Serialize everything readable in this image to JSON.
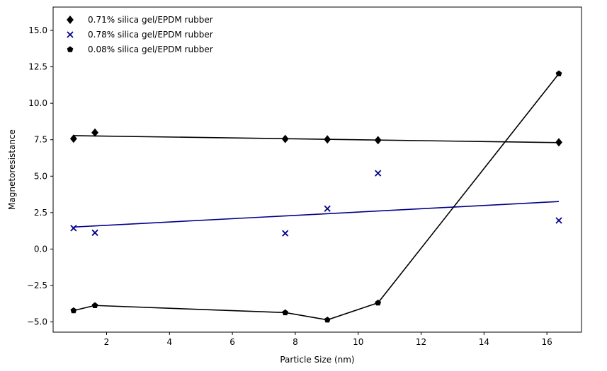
{
  "chart_data": {
    "type": "scatter",
    "title": "",
    "xlabel": "Particle Size (nm)",
    "ylabel": "Magnetoresistance",
    "xlim": [
      0.3,
      17.1
    ],
    "ylim": [
      -5.7,
      16.6
    ],
    "xticks": [
      2,
      4,
      6,
      8,
      10,
      12,
      14,
      16
    ],
    "yticks": [
      -5.0,
      -2.5,
      0.0,
      2.5,
      5.0,
      7.5,
      10.0,
      12.5,
      15.0
    ],
    "xtick_labels": [
      "2",
      "4",
      "6",
      "8",
      "10",
      "12",
      "14",
      "16"
    ],
    "ytick_labels": [
      "−5.0",
      "−2.5",
      "0.0",
      "2.5",
      "5.0",
      "7.5",
      "10.0",
      "12.5",
      "15.0"
    ],
    "grid": false,
    "legend_position": "top-left",
    "series": [
      {
        "name": "0.71% silica gel/EPDM rubber",
        "marker": "diamond",
        "color": "#000000",
        "x": [
          0.95,
          1.63,
          7.68,
          9.02,
          10.63,
          16.38
        ],
        "y": [
          7.57,
          7.99,
          7.55,
          7.52,
          7.47,
          7.32
        ],
        "fit": {
          "kind": "linear",
          "x": [
            0.95,
            16.38
          ],
          "y": [
            7.78,
            7.3
          ],
          "color": "#000000"
        }
      },
      {
        "name": "0.78% silica gel/EPDM rubber",
        "marker": "x",
        "color": "#00008b",
        "x": [
          0.95,
          1.63,
          7.68,
          9.02,
          10.63,
          16.38
        ],
        "y": [
          1.43,
          1.12,
          1.08,
          2.77,
          5.2,
          1.96
        ],
        "fit": {
          "kind": "linear",
          "x": [
            0.95,
            16.38
          ],
          "y": [
            1.51,
            3.26
          ],
          "color": "#00008b"
        }
      },
      {
        "name": "0.08% silica gel/EPDM rubber",
        "marker": "pentagon",
        "color": "#000000",
        "x": [
          0.95,
          1.63,
          7.68,
          9.02,
          10.63,
          16.38
        ],
        "y": [
          -4.22,
          -3.87,
          -4.36,
          -4.86,
          -3.69,
          12.03
        ],
        "fit": {
          "kind": "connect",
          "color": "#000000"
        }
      }
    ]
  }
}
